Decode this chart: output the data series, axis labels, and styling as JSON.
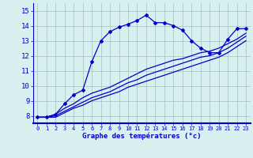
{
  "xlabel": "Graphe des températures (°c)",
  "bg_color": "#d8f0f0",
  "grid_color": "#a8c8c8",
  "line_color": "#0000cc",
  "xlim": [
    -0.5,
    23.5
  ],
  "ylim": [
    7.5,
    15.5
  ],
  "yticks": [
    8,
    9,
    10,
    11,
    12,
    13,
    14,
    15
  ],
  "xticks": [
    0,
    1,
    2,
    3,
    4,
    5,
    6,
    7,
    8,
    9,
    10,
    11,
    12,
    13,
    14,
    15,
    16,
    17,
    18,
    19,
    20,
    21,
    22,
    23
  ],
  "curve1_x": [
    0,
    1,
    2,
    3,
    4,
    5,
    6,
    7,
    8,
    9,
    10,
    11,
    12,
    13,
    14,
    15,
    16,
    17,
    18,
    19,
    20,
    21,
    22,
    23
  ],
  "curve1_y": [
    7.9,
    7.9,
    8.1,
    8.8,
    9.4,
    9.7,
    11.6,
    13.0,
    13.6,
    13.9,
    14.1,
    14.35,
    14.7,
    14.2,
    14.2,
    14.0,
    13.7,
    13.0,
    12.5,
    12.2,
    12.2,
    13.1,
    13.8,
    13.8
  ],
  "curve2_x": [
    0,
    1,
    2,
    3,
    4,
    5,
    6,
    7,
    8,
    9,
    10,
    11,
    12,
    13,
    14,
    15,
    16,
    17,
    18,
    19,
    20,
    21,
    22,
    23
  ],
  "curve2_y": [
    7.9,
    7.9,
    8.1,
    8.5,
    8.8,
    9.2,
    9.5,
    9.7,
    9.9,
    10.2,
    10.5,
    10.8,
    11.1,
    11.3,
    11.5,
    11.7,
    11.8,
    12.0,
    12.2,
    12.3,
    12.5,
    12.8,
    13.1,
    13.5
  ],
  "curve3_x": [
    0,
    1,
    2,
    3,
    4,
    5,
    6,
    7,
    8,
    9,
    10,
    11,
    12,
    13,
    14,
    15,
    16,
    17,
    18,
    19,
    20,
    21,
    22,
    23
  ],
  "curve3_y": [
    7.9,
    7.9,
    8.0,
    8.3,
    8.6,
    8.9,
    9.2,
    9.4,
    9.6,
    9.9,
    10.2,
    10.4,
    10.7,
    10.9,
    11.1,
    11.3,
    11.5,
    11.7,
    11.9,
    12.0,
    12.2,
    12.5,
    12.9,
    13.3
  ],
  "curve4_x": [
    0,
    1,
    2,
    3,
    4,
    5,
    6,
    7,
    8,
    9,
    10,
    11,
    12,
    13,
    14,
    15,
    16,
    17,
    18,
    19,
    20,
    21,
    22,
    23
  ],
  "curve4_y": [
    7.9,
    7.9,
    7.9,
    8.2,
    8.5,
    8.7,
    9.0,
    9.2,
    9.4,
    9.6,
    9.9,
    10.1,
    10.3,
    10.5,
    10.7,
    10.9,
    11.1,
    11.3,
    11.5,
    11.7,
    11.9,
    12.2,
    12.6,
    13.0
  ]
}
